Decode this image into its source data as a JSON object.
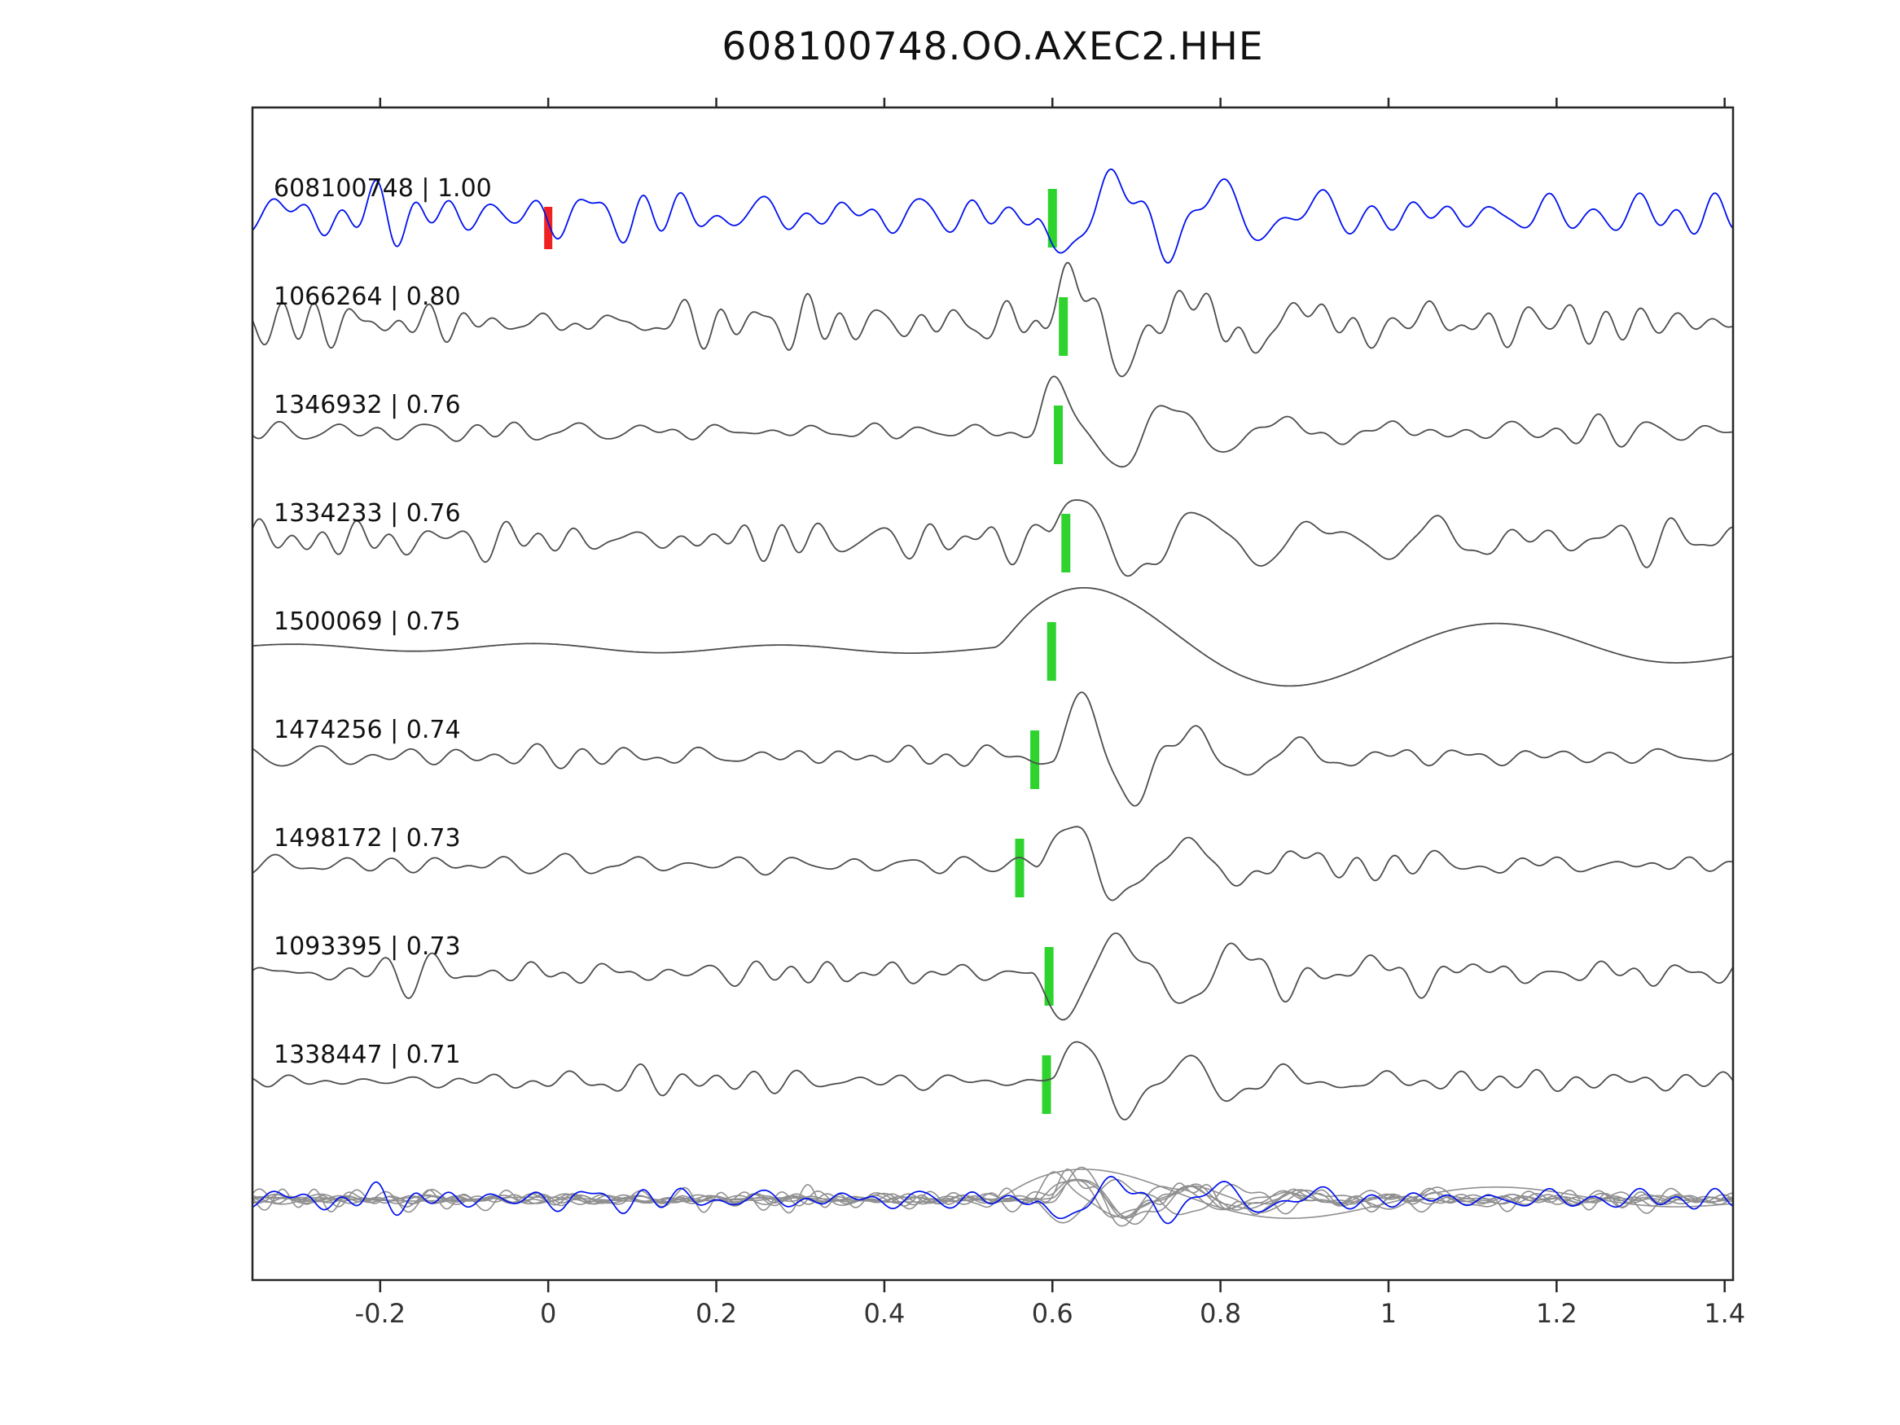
{
  "title": "608100748.OO.AXEC2.HHE",
  "chart_data": {
    "type": "line",
    "subtype": "seismic-waveform-section",
    "title": "608100748.OO.AXEC2.HHE",
    "xlim": [
      -0.352,
      1.41
    ],
    "xtick_values": [
      -0.2,
      0,
      0.2,
      0.4,
      0.6,
      0.8,
      1.0,
      1.2,
      1.4
    ],
    "xlabel_ticks": [
      "-0.2",
      "0",
      "0.2",
      "0.4",
      "0.6",
      "0.8",
      "1",
      "1.2",
      "1.4"
    ],
    "grid": false,
    "legend": "none",
    "colors": {
      "template_trace": "#0011ee",
      "match_trace": "#4d4d4d",
      "overlay_trace": "#8f8f8f",
      "pick_marker": "#2ed32e",
      "zero_marker": "#ee2222",
      "axis": "#262626",
      "tick_text": "#333333",
      "label_text": "#111111"
    },
    "traces": [
      {
        "id": "608100748",
        "corr": "1.00",
        "label": "608100748 | 1.00",
        "role": "template",
        "pick": 0.6,
        "zero_marker": 0.0,
        "synth": {
          "seed": 101,
          "noise_amp": 14,
          "nf1": 8,
          "nf2": 26,
          "arr_t": 0.58,
          "arr_f": 8,
          "arr_amp": 72,
          "decay": 0.22,
          "pol": -1
        }
      },
      {
        "id": "1066264",
        "corr": "0.80",
        "label": "1066264 | 0.80",
        "role": "match",
        "pick": 0.613,
        "synth": {
          "seed": 202,
          "noise_amp": 13,
          "nf1": 10,
          "nf2": 30,
          "arr_t": 0.585,
          "arr_f": 7,
          "arr_amp": 70,
          "decay": 0.25,
          "pol": 1
        }
      },
      {
        "id": "1346932",
        "corr": "0.76",
        "label": "1346932 | 0.76",
        "role": "match",
        "pick": 0.607,
        "synth": {
          "seed": 303,
          "noise_amp": 7,
          "nf1": 8,
          "nf2": 26,
          "arr_t": 0.575,
          "arr_f": 7.5,
          "arr_amp": 80,
          "decay": 0.18,
          "pol": 1
        }
      },
      {
        "id": "1334233",
        "corr": "0.76",
        "label": "1334233 | 0.76",
        "role": "match",
        "pick": 0.616,
        "synth": {
          "seed": 404,
          "noise_amp": 11,
          "nf1": 8,
          "nf2": 28,
          "arr_t": 0.595,
          "arr_f": 7,
          "arr_amp": 80,
          "decay": 0.22,
          "pol": 1
        }
      },
      {
        "id": "1500069",
        "corr": "0.75",
        "label": "1500069 | 0.75",
        "role": "match",
        "pick": 0.599,
        "synth": {
          "seed": 505,
          "noise_amp": 4,
          "nf1": 1.2,
          "nf2": 4,
          "arr_t": 0.53,
          "arr_f": 2.1,
          "arr_amp": 85,
          "decay": 0.5,
          "pol": 1
        }
      },
      {
        "id": "1474256",
        "corr": "0.74",
        "label": "1474256 | 0.74",
        "role": "match",
        "pick": 0.579,
        "synth": {
          "seed": 606,
          "noise_amp": 6,
          "nf1": 8,
          "nf2": 24,
          "arr_t": 0.6,
          "arr_f": 7.5,
          "arr_amp": 88,
          "decay": 0.16,
          "pol": 1
        }
      },
      {
        "id": "1498172",
        "corr": "0.73",
        "label": "1498172 | 0.73",
        "role": "match",
        "pick": 0.561,
        "synth": {
          "seed": 707,
          "noise_amp": 6,
          "nf1": 8,
          "nf2": 26,
          "arr_t": 0.58,
          "arr_f": 7,
          "arr_amp": 65,
          "decay": 0.2,
          "pol": 1
        }
      },
      {
        "id": "1093395",
        "corr": "0.73",
        "label": "1093395 | 0.73",
        "role": "match",
        "pick": 0.596,
        "synth": {
          "seed": 808,
          "noise_amp": 9,
          "nf1": 9,
          "nf2": 28,
          "arr_t": 0.575,
          "arr_f": 7,
          "arr_amp": 70,
          "decay": 0.24,
          "pol": -1
        }
      },
      {
        "id": "1338447",
        "corr": "0.71",
        "label": "1338447 | 0.71",
        "role": "match",
        "pick": 0.593,
        "synth": {
          "seed": 909,
          "noise_amp": 6,
          "nf1": 8,
          "nf2": 24,
          "arr_t": 0.6,
          "arr_f": 8,
          "arr_amp": 78,
          "decay": 0.15,
          "pol": 1
        }
      }
    ],
    "overlay_row": {
      "description": "all traces superimposed, matches gray, template blue",
      "scale": 0.5
    }
  }
}
